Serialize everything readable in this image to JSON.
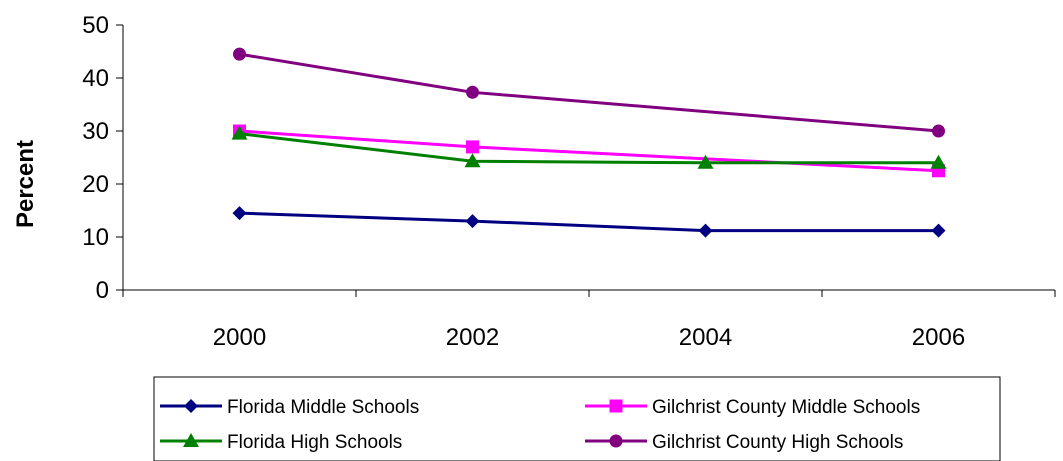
{
  "chart_data": {
    "type": "line",
    "ylabel": "Percent",
    "xlabel": "",
    "ylim": [
      0,
      50
    ],
    "yticks": [
      0,
      10,
      20,
      30,
      40,
      50
    ],
    "categories": [
      "2000",
      "2002",
      "2004",
      "2006"
    ],
    "grid": false,
    "legend": "bottom",
    "series": [
      {
        "name": "Florida Middle Schools",
        "values": [
          14.5,
          13,
          11.2,
          11.2
        ],
        "color": "#000080",
        "marker": "diamond"
      },
      {
        "name": "Gilchrist County Middle Schools",
        "values": [
          30,
          27,
          null,
          22.5
        ],
        "color": "#ff00ff",
        "marker": "square"
      },
      {
        "name": "Florida High Schools",
        "values": [
          29.5,
          24.3,
          24,
          24
        ],
        "color": "#008000",
        "marker": "triangle"
      },
      {
        "name": "Gilchrist County High Schools",
        "values": [
          44.5,
          37.3,
          null,
          30
        ],
        "color": "#800080",
        "marker": "circle"
      }
    ]
  }
}
